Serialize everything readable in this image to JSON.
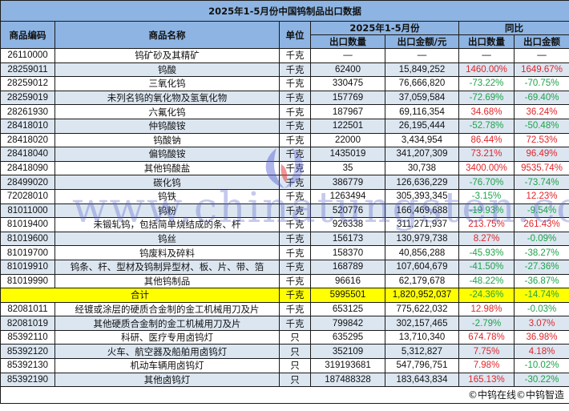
{
  "title": "2025年1-5月份中国钨制品出口数据",
  "headers": {
    "code": "商品编码",
    "name": "商品名称",
    "unit": "单位",
    "period": "2025年1-5月份",
    "yoy": "同比",
    "qty": "出口数量",
    "amount": "出口金额/元",
    "yoy_qty": "出口数量",
    "yoy_amount": "出口金额"
  },
  "colors": {
    "header_bg": "#8db4e2",
    "alt_row_bg": "#dce6f1",
    "total_row_bg": "#ffff00",
    "positive": "#e0262b",
    "negative": "#1ea34a"
  },
  "rows": [
    {
      "code": "26110000",
      "name": "钨矿砂及其精矿",
      "unit": "千克",
      "qty": "—",
      "amount": "—",
      "yoy_qty": "—",
      "yoy_amount": "—"
    },
    {
      "code": "28259011",
      "name": "钨酸",
      "unit": "千克",
      "qty": "62400",
      "amount": "15,849,252",
      "yoy_qty": "1460.00%",
      "yoy_amount": "1649.67%"
    },
    {
      "code": "28259012",
      "name": "三氧化钨",
      "unit": "千克",
      "qty": "330475",
      "amount": "76,666,820",
      "yoy_qty": "-73.22%",
      "yoy_amount": "-70.75%"
    },
    {
      "code": "28259019",
      "name": "未列名钨的氧化物及氢氧化物",
      "unit": "千克",
      "qty": "157769",
      "amount": "37,059,584",
      "yoy_qty": "-72.69%",
      "yoy_amount": "-69.40%"
    },
    {
      "code": "28261930",
      "name": "六氟化钨",
      "unit": "千克",
      "qty": "187967",
      "amount": "69,116,354",
      "yoy_qty": "34.68%",
      "yoy_amount": "36.24%"
    },
    {
      "code": "28418010",
      "name": "仲钨酸铵",
      "unit": "千克",
      "qty": "122501",
      "amount": "26,195,444",
      "yoy_qty": "-52.78%",
      "yoy_amount": "-50.48%"
    },
    {
      "code": "28418020",
      "name": "钨酸钠",
      "unit": "千克",
      "qty": "22000",
      "amount": "3,434,954",
      "yoy_qty": "86.44%",
      "yoy_amount": "72.53%"
    },
    {
      "code": "28418040",
      "name": "偏钨酸铵",
      "unit": "千克",
      "qty": "1435019",
      "amount": "341,207,309",
      "yoy_qty": "73.21%",
      "yoy_amount": "96.49%"
    },
    {
      "code": "28418090",
      "name": "其他钨酸盐",
      "unit": "千克",
      "qty": "35",
      "amount": "30,738",
      "yoy_qty": "3400.00%",
      "yoy_amount": "9535.74%"
    },
    {
      "code": "28499020",
      "name": "碳化钨",
      "unit": "千克",
      "qty": "386779",
      "amount": "126,636,229",
      "yoy_qty": "-76.70%",
      "yoy_amount": "-73.74%"
    },
    {
      "code": "72028010",
      "name": "钨铁",
      "unit": "千克",
      "qty": "1263494",
      "amount": "305,393,345",
      "yoy_qty": "-3.15%",
      "yoy_amount": "12.23%"
    },
    {
      "code": "81011000",
      "name": "钨粉",
      "unit": "千克",
      "qty": "520776",
      "amount": "166,469,688",
      "yoy_qty": "-19.93%",
      "yoy_amount": "-9.54%"
    },
    {
      "code": "81019400",
      "name": "未锻轧钨，包括简单烧结成的条、杆",
      "unit": "千克",
      "qty": "926338",
      "amount": "311,271,937",
      "yoy_qty": "213.75%",
      "yoy_amount": "261.43%"
    },
    {
      "code": "81019600",
      "name": "钨丝",
      "unit": "千克",
      "qty": "156173",
      "amount": "130,979,738",
      "yoy_qty": "8.27%",
      "yoy_amount": "-0.09%"
    },
    {
      "code": "81019700",
      "name": "钨废料及碎料",
      "unit": "千克",
      "qty": "158370",
      "amount": "40,856,288",
      "yoy_qty": "-45.93%",
      "yoy_amount": "-38.27%"
    },
    {
      "code": "81019910",
      "name": "钨条、杆、型材及钨制异型材、板、片、带、箔",
      "unit": "千克",
      "qty": "168789",
      "amount": "107,604,679",
      "yoy_qty": "-41.50%",
      "yoy_amount": "-27.36%"
    },
    {
      "code": "81019990",
      "name": "其他钨制品",
      "unit": "千克",
      "qty": "96616",
      "amount": "62,179,678",
      "yoy_qty": "-48.22%",
      "yoy_amount": "-36.87%"
    }
  ],
  "total": {
    "label": "合计",
    "unit": "千克",
    "qty": "5995501",
    "amount": "1,820,952,037",
    "yoy_qty": "-24.36%",
    "yoy_amount": "-14.74%"
  },
  "rows2": [
    {
      "code": "82081011",
      "name": "经镀或涂层的硬质合金制的金工机械用刀及片",
      "unit": "千克",
      "qty": "653125",
      "amount": "775,622,032",
      "yoy_qty": "12.98%",
      "yoy_amount": "-0.03%"
    },
    {
      "code": "82081019",
      "name": "其他硬质合金制的金工机械用刀及片",
      "unit": "千克",
      "qty": "799842",
      "amount": "302,157,465",
      "yoy_qty": "-2.79%",
      "yoy_amount": "3.07%"
    },
    {
      "code": "85392110",
      "name": "科研、医疗专用卤钨灯",
      "unit": "只",
      "qty": "635295",
      "amount": "13,710,340",
      "yoy_qty": "674.78%",
      "yoy_amount": "36.98%"
    },
    {
      "code": "85392120",
      "name": "火车、航空器及船舶用卤钨灯",
      "unit": "只",
      "qty": "352109",
      "amount": "5,312,827",
      "yoy_qty": "7.75%",
      "yoy_amount": "4.18%"
    },
    {
      "code": "85392130",
      "name": "机动车辆用卤钨灯",
      "unit": "只",
      "qty": "319193681",
      "amount": "547,796,751",
      "yoy_qty": "7.98%",
      "yoy_amount": "-10.02%"
    },
    {
      "code": "85392190",
      "name": "其他卤钨灯",
      "unit": "只",
      "qty": "187488328",
      "amount": "183,643,834",
      "yoy_qty": "165.13%",
      "yoy_amount": "-30.22%"
    }
  ],
  "footer": "©中钨在线©中钨智造",
  "watermark": "www.chinatungsten.com",
  "watermark_logo": "CTIA"
}
